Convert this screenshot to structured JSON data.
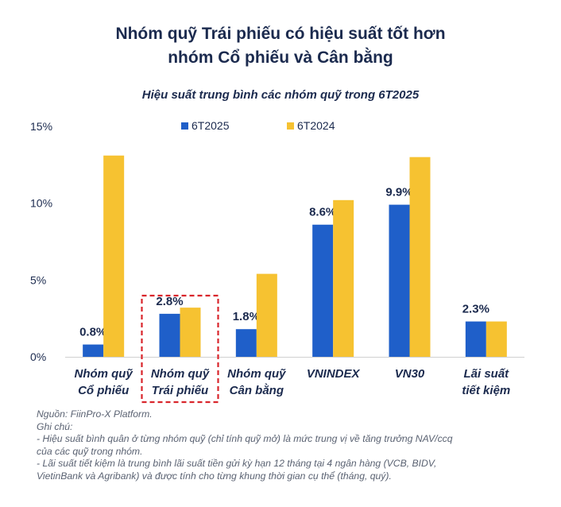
{
  "header": {
    "title_line1": "Nhóm quỹ Trái phiếu có hiệu suất tốt hơn",
    "title_line2": "nhóm Cổ phiếu và Cân bằng"
  },
  "chart_data": {
    "type": "bar",
    "title": "Hiệu suất trung bình các nhóm quỹ trong 6T2025",
    "categories": [
      [
        "Nhóm quỹ",
        "Cổ phiếu"
      ],
      [
        "Nhóm quỹ",
        "Trái phiếu"
      ],
      [
        "Nhóm quỹ",
        "Cân bằng"
      ],
      [
        "VNINDEX"
      ],
      [
        "VN30"
      ],
      [
        "Lãi suất",
        "tiết kiệm"
      ]
    ],
    "series": [
      {
        "name": "6T2025",
        "color": "#1f5fc9",
        "values": [
          0.8,
          2.8,
          1.8,
          8.6,
          9.9,
          2.3
        ],
        "labels": [
          "0.8%",
          "2.8%",
          "1.8%",
          "8.6%",
          "9.9%",
          "2.3%"
        ]
      },
      {
        "name": "6T2024",
        "color": "#f6c231",
        "values": [
          13.1,
          3.2,
          5.4,
          10.2,
          13.0,
          2.3
        ]
      }
    ],
    "yticks": [
      "0%",
      "5%",
      "10%",
      "15%"
    ],
    "ytick_values": [
      0,
      5,
      10,
      15
    ],
    "ylim": [
      0,
      15
    ],
    "legend_position": "top",
    "grid": false,
    "highlighted_category": "Nhóm quỹ Trái phiếu",
    "highlight_color": "#d9262c"
  },
  "notes": {
    "source": "Nguồn: FiinPro-X Platform.",
    "label": "Ghi chú:",
    "line1": "- Hiệu suất bình quân ở từng nhóm quỹ (chỉ tính quỹ mở) là mức trung vị về tăng trưởng NAV/ccq",
    "line2": "của các quỹ trong nhóm.",
    "line3": "- Lãi suất tiết kiệm là trung bình lãi suất tiền gửi kỳ hạn 12 tháng tại 4 ngân hàng (VCB, BIDV,",
    "line4": "VietinBank và Agribank) và được tính cho từng khung thời gian cụ thể (tháng, quý)."
  }
}
